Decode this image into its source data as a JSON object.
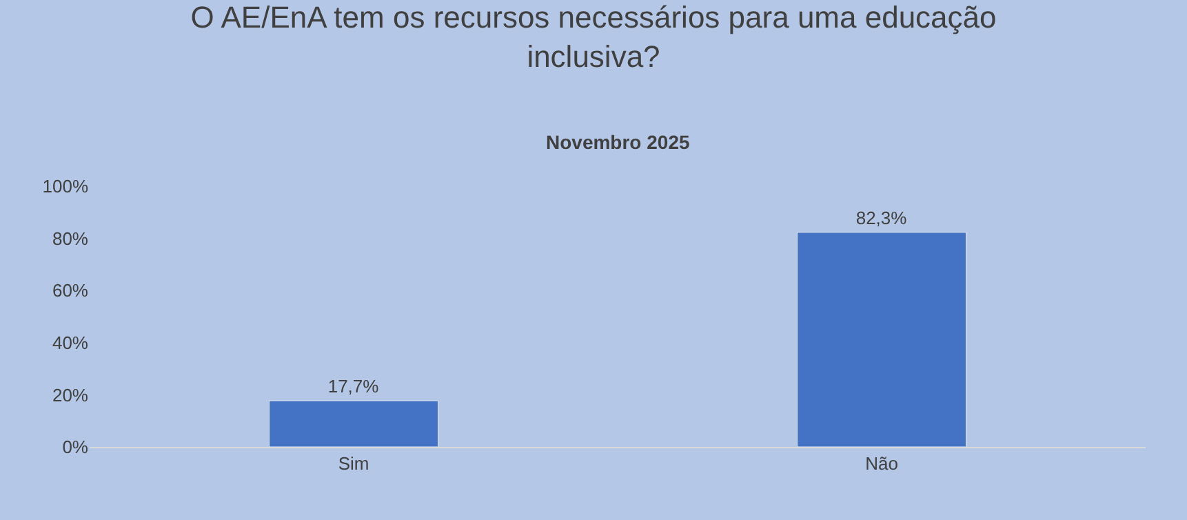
{
  "chart_data": {
    "type": "bar",
    "title": "O AE/EnA tem os recursos necessários para uma educação inclusiva?",
    "subtitle": "Novembro 2025",
    "categories": [
      "Sim",
      "Não"
    ],
    "values": [
      17.7,
      82.3
    ],
    "color": "#4472c4",
    "value_labels": [
      "17,7%",
      "82,3%"
    ],
    "ylim": [
      0,
      100
    ],
    "yticks": [
      {
        "value": 0,
        "label": "0%"
      },
      {
        "value": 20,
        "label": "20%"
      },
      {
        "value": 40,
        "label": "40%"
      },
      {
        "value": 60,
        "label": "60%"
      },
      {
        "value": 80,
        "label": "80%"
      },
      {
        "value": 100,
        "label": "100%"
      }
    ],
    "grid": false,
    "legend": false
  }
}
